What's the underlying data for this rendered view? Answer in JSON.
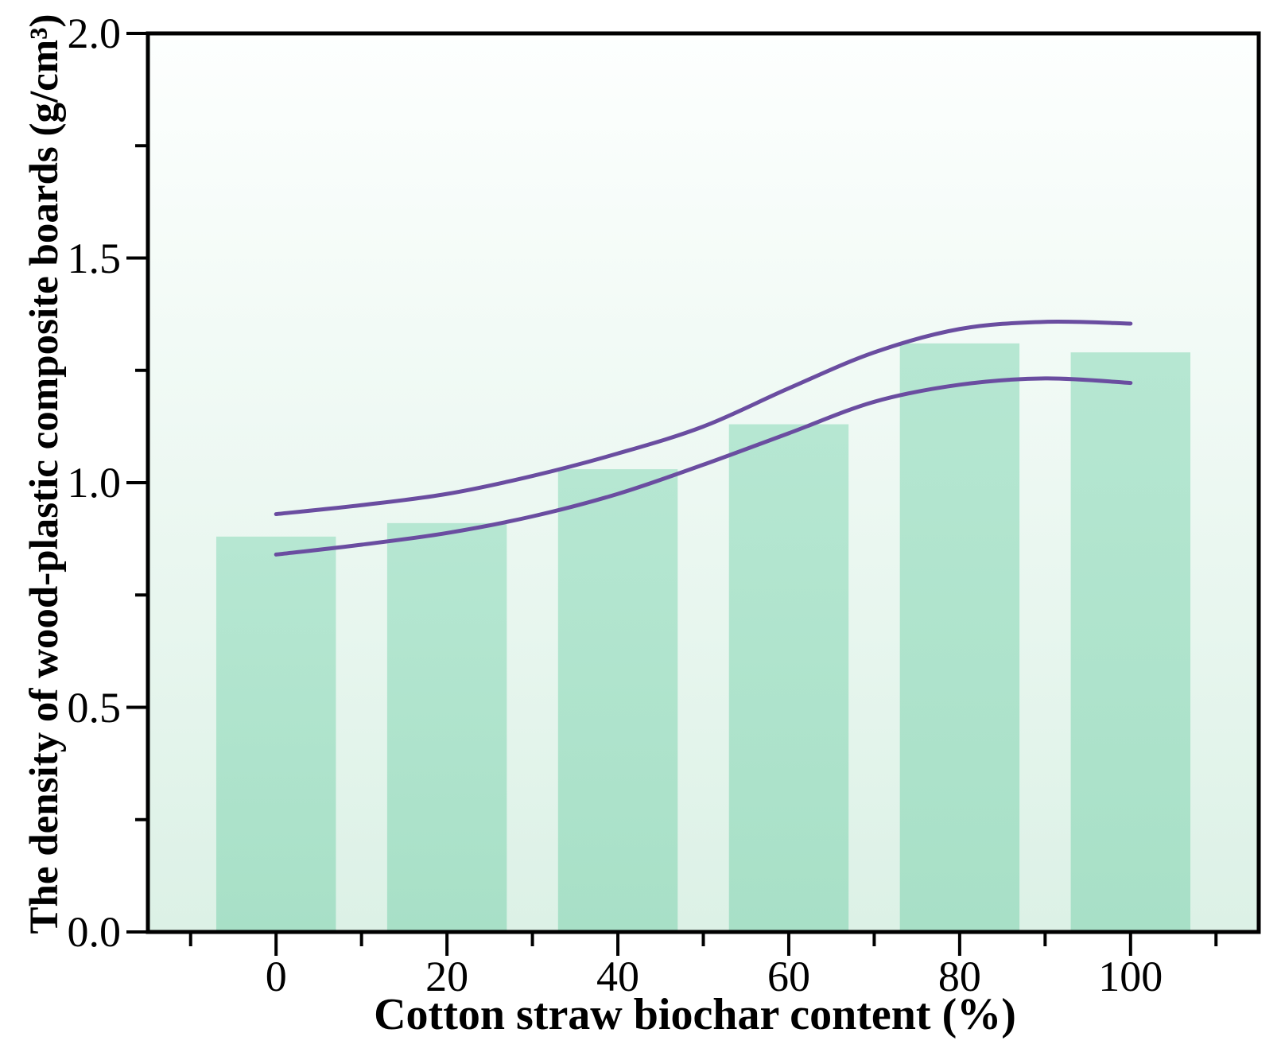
{
  "figure": {
    "background": "#ffffff"
  },
  "chart_data": {
    "type": "bar",
    "xlabel": "Cotton straw biochar content (%)",
    "ylabel": "The density of wood-plastic composite boards (g/cm³)",
    "categories": [
      0,
      20,
      40,
      60,
      80,
      100
    ],
    "values": [
      0.88,
      0.91,
      1.03,
      1.13,
      1.31,
      1.29
    ],
    "bar_width_units": 14,
    "xlim": [
      -15,
      115
    ],
    "ylim": [
      0,
      2.0
    ],
    "x_major_ticks": [
      0,
      20,
      40,
      60,
      80,
      100
    ],
    "x_tick_labels": [
      "0",
      "20",
      "40",
      "60",
      "80",
      "100"
    ],
    "x_minor_ticks": [
      -10,
      10,
      30,
      50,
      70,
      90,
      110
    ],
    "y_major_ticks": [
      0,
      0.5,
      1.0,
      1.5,
      2.0
    ],
    "y_tick_labels": [
      "0.0",
      "0.5",
      "1.0",
      "1.5",
      "2.0"
    ],
    "y_minor_ticks": [
      0.25,
      0.75,
      1.25,
      1.75
    ],
    "grid": false,
    "legend": null,
    "confidence_band": {
      "x": [
        0,
        10,
        20,
        30,
        40,
        50,
        60,
        70,
        80,
        90,
        100
      ],
      "upper": [
        0.93,
        0.95,
        0.975,
        1.015,
        1.065,
        1.125,
        1.21,
        1.29,
        1.342,
        1.358,
        1.354
      ],
      "lower": [
        0.84,
        0.862,
        0.888,
        0.925,
        0.975,
        1.04,
        1.11,
        1.18,
        1.218,
        1.232,
        1.222
      ]
    },
    "colors": {
      "bar_fill_top": "#b6e7d2",
      "bar_fill_bottom": "#a8e0c7",
      "plot_bg_top": "#fdfffe",
      "plot_bg_bottom": "#dcf1e6",
      "band_line": "#6a4da0",
      "axis": "#000000",
      "text": "#000000"
    }
  }
}
